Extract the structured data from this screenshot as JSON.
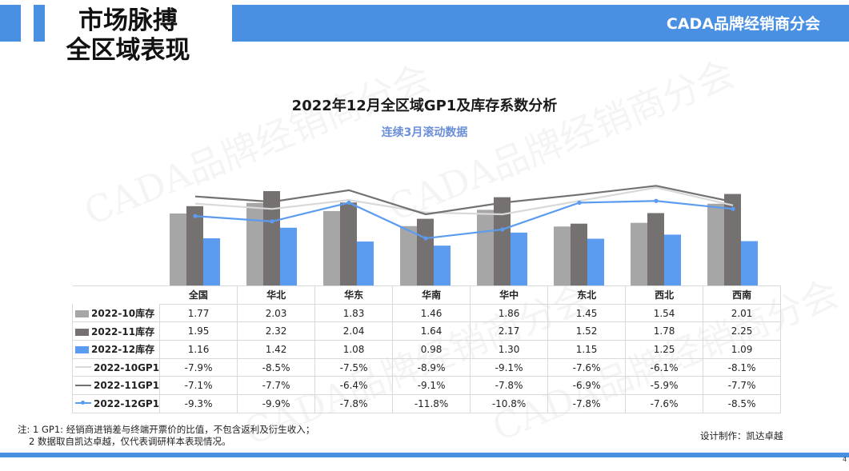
{
  "header": {
    "title_line1": "市场脉搏",
    "title_line2": "全区域表现",
    "brand": "CADA品牌经销商分会"
  },
  "watermark_text": "CADA品牌经销商分会",
  "colors": {
    "accent": "#4A90E2",
    "inv_oct": "#A6A6A6",
    "inv_nov": "#767171",
    "inv_dec": "#5B9BF0",
    "gp1_oct": "#D9D9D9",
    "gp1_nov": "#767171",
    "gp1_dec": "#5B9BF0"
  },
  "chart_data": {
    "type": "bar+line",
    "title": "2022年12月全区域GP1及库存系数分析",
    "subtitle": "连续3月滚动数据",
    "categories": [
      "全国",
      "华北",
      "华东",
      "华南",
      "华中",
      "东北",
      "西北",
      "西南"
    ],
    "bar_series": [
      {
        "name": "2022-10库存",
        "values": [
          "1.77",
          "2.03",
          "1.83",
          "1.46",
          "1.86",
          "1.45",
          "1.54",
          "2.01"
        ]
      },
      {
        "name": "2022-11库存",
        "values": [
          "1.95",
          "2.32",
          "2.04",
          "1.64",
          "2.17",
          "1.52",
          "1.78",
          "2.25"
        ]
      },
      {
        "name": "2022-12库存",
        "values": [
          "1.16",
          "1.42",
          "1.08",
          "0.98",
          "1.30",
          "1.15",
          "1.25",
          "1.09"
        ]
      }
    ],
    "line_series": [
      {
        "name": "2022-10GP1",
        "values": [
          "-7.9%",
          "-8.5%",
          "-7.5%",
          "-8.9%",
          "-9.1%",
          "-7.6%",
          "-6.1%",
          "-8.1%"
        ]
      },
      {
        "name": "2022-11GP1",
        "values": [
          "-7.1%",
          "-7.7%",
          "-6.4%",
          "-9.1%",
          "-7.8%",
          "-6.9%",
          "-5.9%",
          "-7.7%"
        ]
      },
      {
        "name": "2022-12GP1",
        "values": [
          "-9.3%",
          "-9.9%",
          "-7.8%",
          "-11.8%",
          "-10.8%",
          "-7.8%",
          "-7.6%",
          "-8.5%"
        ]
      }
    ],
    "bar_axis": {
      "min": 0,
      "max": 2.6
    },
    "line_axis": {
      "min": -17,
      "max": -3
    },
    "axes_visible": false,
    "gridlines": false,
    "data_table": true
  },
  "footnote": {
    "line1": "注: 1 GP1: 经销商进销差与终端开票价的比值，不包含返利及衍生收入；",
    "line2": "2 数据取自凯达卓越，仅代表调研样本表现情况。"
  },
  "credit": "设计制作：凯达卓越",
  "slide_marker": "4"
}
